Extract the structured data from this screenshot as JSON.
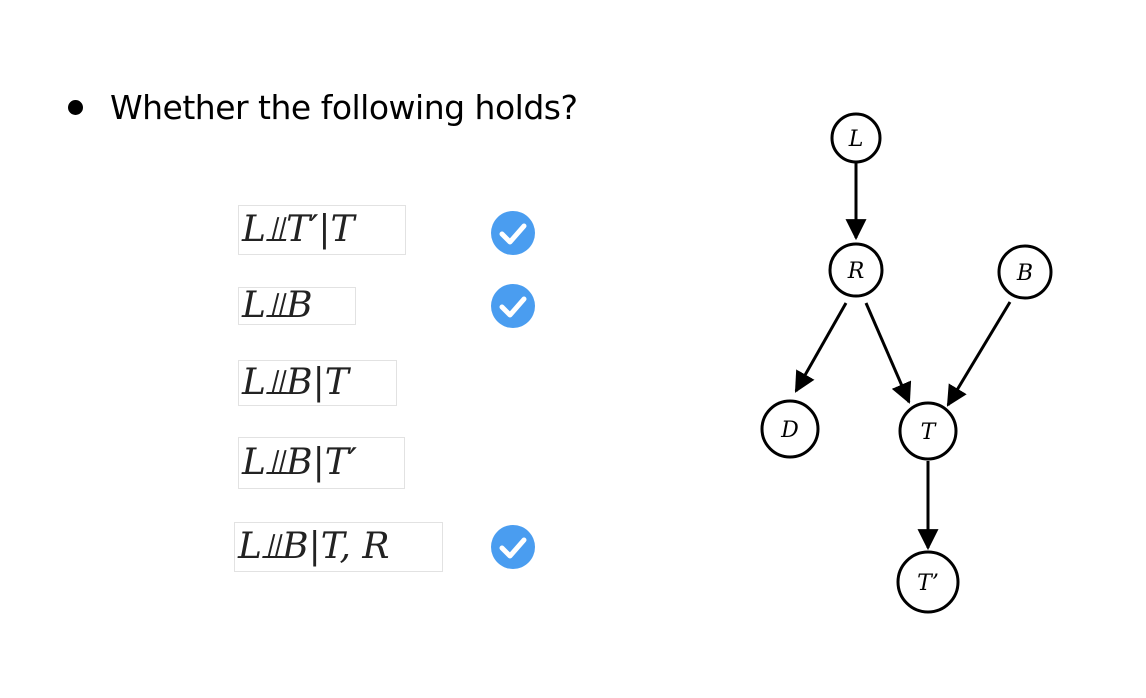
{
  "slide": {
    "bullet_text": "Whether the following holds?"
  },
  "statements": [
    {
      "text": "L⫫T′|T",
      "holds": true
    },
    {
      "text": "L⫫B",
      "holds": true
    },
    {
      "text": "L⫫B|T",
      "holds": false
    },
    {
      "text": "L⫫B|T′",
      "holds": false
    },
    {
      "text": "L⫫B|T, R",
      "holds": true
    }
  ],
  "check_icon": {
    "name": "checkmark-circle-icon",
    "color": "#4a9df0"
  },
  "graph": {
    "nodes": [
      {
        "id": "L",
        "label": "L"
      },
      {
        "id": "R",
        "label": "R"
      },
      {
        "id": "B",
        "label": "B"
      },
      {
        "id": "D",
        "label": "D"
      },
      {
        "id": "T",
        "label": "T"
      },
      {
        "id": "Tp",
        "label": "T’"
      }
    ],
    "edges": [
      {
        "from": "L",
        "to": "R"
      },
      {
        "from": "R",
        "to": "D"
      },
      {
        "from": "R",
        "to": "T"
      },
      {
        "from": "B",
        "to": "T"
      },
      {
        "from": "T",
        "to": "Tp"
      }
    ]
  }
}
